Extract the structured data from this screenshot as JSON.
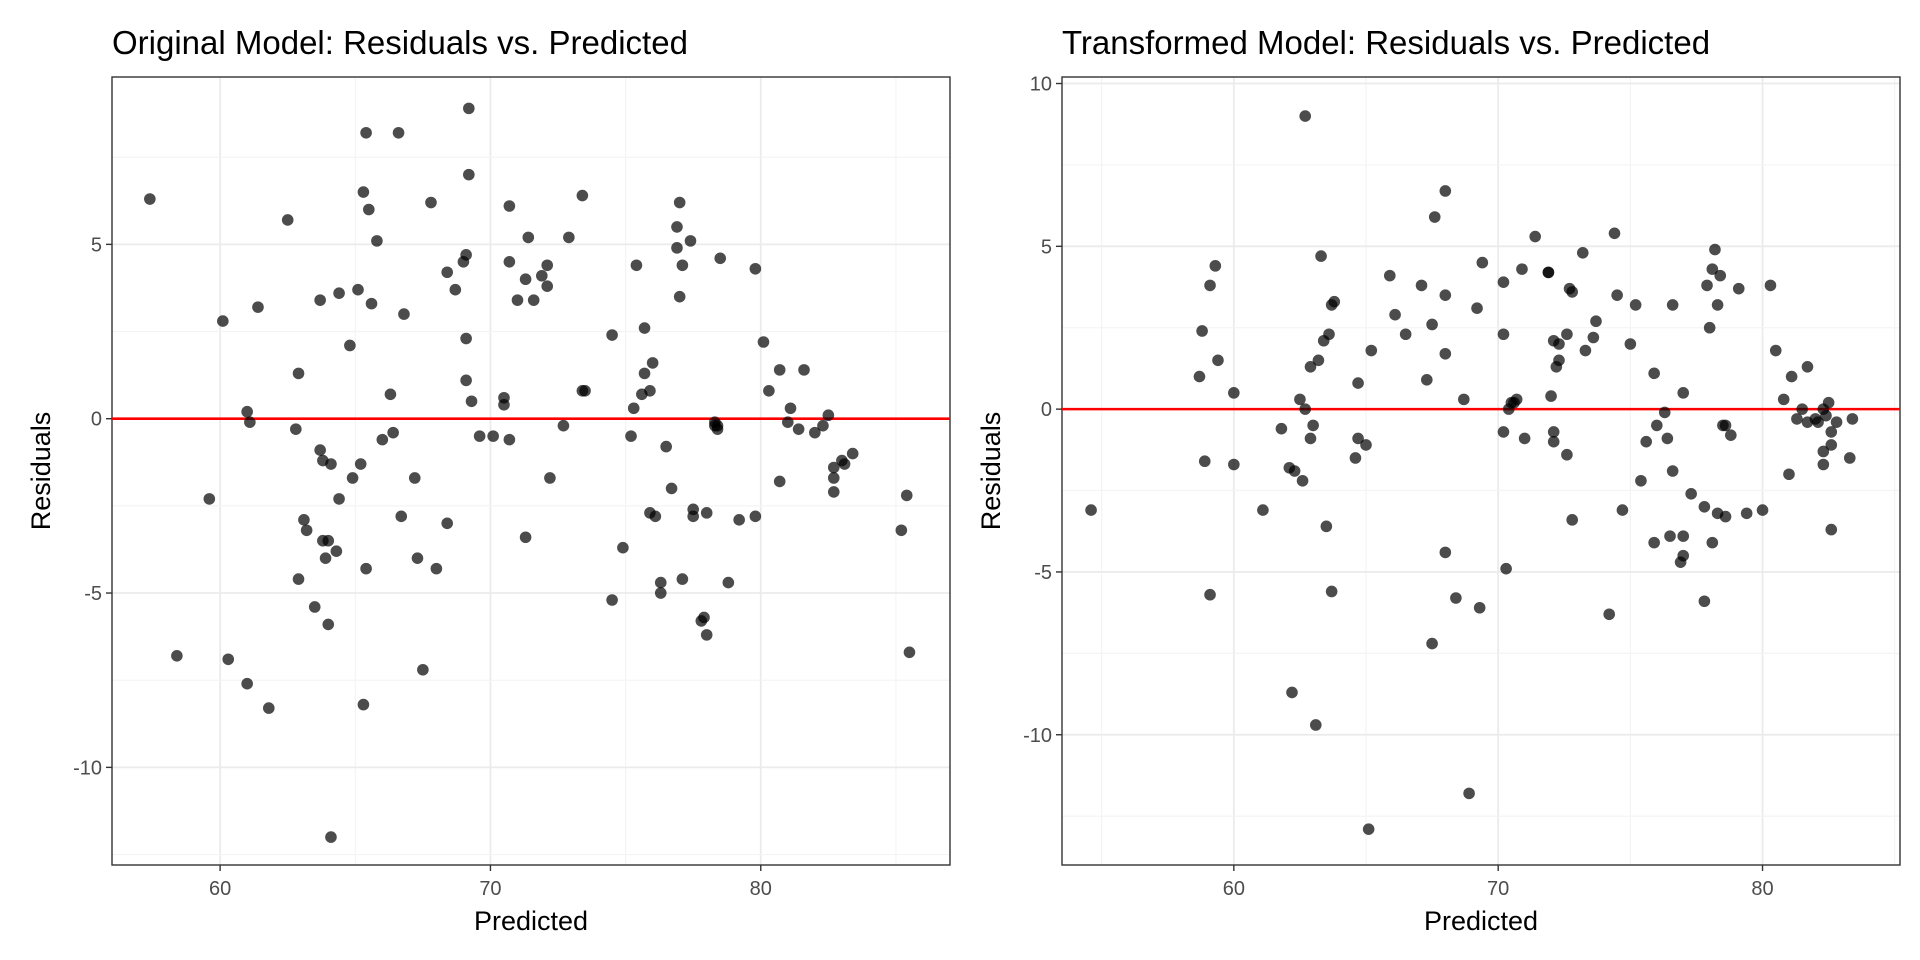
{
  "style": {
    "point_color": "#000000",
    "point_opacity": 0.7,
    "ref_line_color": "#ff0000",
    "grid_major_color": "#ebebeb",
    "grid_minor_color": "#f4f4f4",
    "panel_border_color": "#333333"
  },
  "chart_data": [
    {
      "type": "scatter",
      "title": "Original Model: Residuals vs. Predicted",
      "xlabel": "Predicted",
      "ylabel": "Residuals",
      "xlim": [
        56,
        87
      ],
      "ylim": [
        -12.8,
        9.8
      ],
      "xticks": [
        60,
        70,
        80
      ],
      "yticks": [
        -10,
        -5,
        0,
        5
      ],
      "tick_labels_x": [
        "60",
        "70",
        "80"
      ],
      "tick_labels_y": [
        "-10",
        "-5",
        "0",
        "5"
      ],
      "hline": 0,
      "grid": true,
      "points": [
        [
          57.4,
          6.3
        ],
        [
          58.4,
          -6.8
        ],
        [
          59.6,
          -2.3
        ],
        [
          60.1,
          2.8
        ],
        [
          60.3,
          -6.9
        ],
        [
          61.0,
          0.2
        ],
        [
          61.1,
          -0.1
        ],
        [
          61.0,
          -7.6
        ],
        [
          61.4,
          3.2
        ],
        [
          61.8,
          -8.3
        ],
        [
          62.5,
          5.7
        ],
        [
          62.8,
          -0.3
        ],
        [
          62.9,
          1.3
        ],
        [
          62.9,
          -4.6
        ],
        [
          63.1,
          -2.9
        ],
        [
          63.2,
          -3.2
        ],
        [
          63.5,
          -5.4
        ],
        [
          63.7,
          3.4
        ],
        [
          63.7,
          -0.9
        ],
        [
          63.8,
          -1.2
        ],
        [
          63.8,
          -3.5
        ],
        [
          63.9,
          -4.0
        ],
        [
          64.0,
          -3.5
        ],
        [
          64.1,
          -1.3
        ],
        [
          64.0,
          -5.9
        ],
        [
          64.1,
          -12.0
        ],
        [
          64.3,
          -3.8
        ],
        [
          64.4,
          3.6
        ],
        [
          64.4,
          -2.3
        ],
        [
          64.8,
          2.1
        ],
        [
          64.9,
          -1.7
        ],
        [
          65.1,
          3.7
        ],
        [
          65.2,
          -1.3
        ],
        [
          65.3,
          -8.2
        ],
        [
          65.3,
          6.5
        ],
        [
          65.4,
          8.2
        ],
        [
          65.4,
          -4.3
        ],
        [
          65.5,
          6.0
        ],
        [
          65.6,
          3.3
        ],
        [
          65.8,
          5.1
        ],
        [
          66.0,
          -0.6
        ],
        [
          66.3,
          0.7
        ],
        [
          66.4,
          -0.4
        ],
        [
          66.6,
          8.2
        ],
        [
          66.7,
          -2.8
        ],
        [
          66.8,
          3.0
        ],
        [
          67.2,
          -1.7
        ],
        [
          67.3,
          -4.0
        ],
        [
          67.5,
          -7.2
        ],
        [
          67.8,
          6.2
        ],
        [
          68.0,
          -4.3
        ],
        [
          68.4,
          -3.0
        ],
        [
          68.4,
          4.2
        ],
        [
          68.7,
          3.7
        ],
        [
          69.0,
          4.5
        ],
        [
          69.1,
          4.7
        ],
        [
          69.1,
          1.1
        ],
        [
          69.1,
          2.3
        ],
        [
          69.2,
          7.0
        ],
        [
          69.2,
          8.9
        ],
        [
          69.3,
          0.5
        ],
        [
          69.6,
          -0.5
        ],
        [
          70.1,
          -0.5
        ],
        [
          70.5,
          0.4
        ],
        [
          70.5,
          0.6
        ],
        [
          70.7,
          -0.6
        ],
        [
          70.7,
          6.1
        ],
        [
          70.7,
          4.5
        ],
        [
          71.0,
          3.4
        ],
        [
          71.3,
          -3.4
        ],
        [
          71.3,
          4.0
        ],
        [
          71.4,
          5.2
        ],
        [
          71.6,
          3.4
        ],
        [
          71.9,
          4.1
        ],
        [
          72.1,
          3.8
        ],
        [
          72.1,
          4.4
        ],
        [
          72.2,
          -1.7
        ],
        [
          72.7,
          -0.2
        ],
        [
          72.9,
          5.2
        ],
        [
          73.4,
          6.4
        ],
        [
          73.4,
          0.8
        ],
        [
          73.5,
          0.8
        ],
        [
          74.5,
          2.4
        ],
        [
          74.5,
          -5.2
        ],
        [
          74.9,
          -3.7
        ],
        [
          75.2,
          -0.5
        ],
        [
          75.3,
          0.3
        ],
        [
          75.4,
          4.4
        ],
        [
          75.6,
          0.7
        ],
        [
          75.7,
          2.6
        ],
        [
          75.7,
          1.3
        ],
        [
          75.9,
          -2.7
        ],
        [
          75.9,
          0.8
        ],
        [
          76.0,
          1.6
        ],
        [
          76.1,
          -2.8
        ],
        [
          76.3,
          -5.0
        ],
        [
          76.3,
          -4.7
        ],
        [
          76.5,
          -0.8
        ],
        [
          76.7,
          -2.0
        ],
        [
          76.9,
          4.9
        ],
        [
          76.9,
          5.5
        ],
        [
          77.0,
          6.2
        ],
        [
          77.0,
          3.5
        ],
        [
          77.1,
          4.4
        ],
        [
          77.1,
          -4.6
        ],
        [
          77.4,
          5.1
        ],
        [
          77.5,
          -2.8
        ],
        [
          77.5,
          -2.6
        ],
        [
          77.8,
          -5.8
        ],
        [
          77.9,
          -5.7
        ],
        [
          78.0,
          -6.2
        ],
        [
          78.0,
          -2.7
        ],
        [
          78.3,
          -0.2
        ],
        [
          78.3,
          -0.1
        ],
        [
          78.4,
          -0.3
        ],
        [
          78.4,
          -0.2
        ],
        [
          78.5,
          4.6
        ],
        [
          78.8,
          -4.7
        ],
        [
          79.2,
          -2.9
        ],
        [
          79.8,
          4.3
        ],
        [
          79.8,
          -2.8
        ],
        [
          80.1,
          2.2
        ],
        [
          80.3,
          0.8
        ],
        [
          80.7,
          1.4
        ],
        [
          80.7,
          -1.8
        ],
        [
          81.0,
          -0.1
        ],
        [
          81.1,
          0.3
        ],
        [
          81.4,
          -0.3
        ],
        [
          81.6,
          1.4
        ],
        [
          82.0,
          -0.4
        ],
        [
          82.3,
          -0.2
        ],
        [
          82.5,
          0.1
        ],
        [
          82.7,
          -1.4
        ],
        [
          82.7,
          -1.7
        ],
        [
          82.7,
          -2.1
        ],
        [
          83.0,
          -1.2
        ],
        [
          83.1,
          -1.3
        ],
        [
          83.4,
          -1.0
        ],
        [
          85.2,
          -3.2
        ],
        [
          85.4,
          -2.2
        ],
        [
          85.5,
          -6.7
        ]
      ]
    },
    {
      "type": "scatter",
      "title": "Transformed Model: Residuals vs. Predicted",
      "xlabel": "Predicted",
      "ylabel": "Residuals",
      "xlim": [
        53.5,
        85.2
      ],
      "ylim": [
        -14.0,
        10.2
      ],
      "xticks": [
        60,
        70,
        80
      ],
      "yticks": [
        -10,
        -5,
        0,
        5,
        10
      ],
      "tick_labels_x": [
        "60",
        "70",
        "80"
      ],
      "tick_labels_y": [
        "-10",
        "-5",
        "0",
        "5",
        "10"
      ],
      "hline": 0,
      "grid": true,
      "points": [
        [
          54.6,
          -3.1
        ],
        [
          58.7,
          1.0
        ],
        [
          58.8,
          2.4
        ],
        [
          58.9,
          -1.6
        ],
        [
          59.1,
          -5.7
        ],
        [
          59.1,
          3.8
        ],
        [
          59.3,
          4.4
        ],
        [
          59.4,
          1.5
        ],
        [
          60.0,
          0.5
        ],
        [
          60.0,
          -1.7
        ],
        [
          61.1,
          -3.1
        ],
        [
          61.8,
          -0.6
        ],
        [
          62.1,
          -1.8
        ],
        [
          62.2,
          -8.7
        ],
        [
          62.3,
          -1.9
        ],
        [
          62.5,
          0.3
        ],
        [
          62.6,
          -2.2
        ],
        [
          62.7,
          9.0
        ],
        [
          62.7,
          0.0
        ],
        [
          62.9,
          -0.9
        ],
        [
          62.9,
          1.3
        ],
        [
          63.0,
          -0.5
        ],
        [
          63.1,
          -9.7
        ],
        [
          63.2,
          1.5
        ],
        [
          63.3,
          4.7
        ],
        [
          63.4,
          2.1
        ],
        [
          63.5,
          -3.6
        ],
        [
          63.6,
          2.3
        ],
        [
          63.7,
          -5.6
        ],
        [
          63.7,
          3.2
        ],
        [
          63.8,
          3.3
        ],
        [
          64.6,
          -1.5
        ],
        [
          64.7,
          0.8
        ],
        [
          64.7,
          -0.9
        ],
        [
          65.0,
          -1.1
        ],
        [
          65.1,
          -12.9
        ],
        [
          65.2,
          1.8
        ],
        [
          65.9,
          4.1
        ],
        [
          66.1,
          2.9
        ],
        [
          66.5,
          2.3
        ],
        [
          67.1,
          3.8
        ],
        [
          67.3,
          0.9
        ],
        [
          67.5,
          2.6
        ],
        [
          67.5,
          -7.2
        ],
        [
          67.6,
          5.9
        ],
        [
          68.0,
          6.7
        ],
        [
          68.0,
          -4.4
        ],
        [
          68.0,
          1.7
        ],
        [
          68.0,
          3.5
        ],
        [
          68.4,
          -5.8
        ],
        [
          68.7,
          0.3
        ],
        [
          68.9,
          -11.8
        ],
        [
          69.2,
          3.1
        ],
        [
          69.3,
          -6.1
        ],
        [
          69.4,
          4.5
        ],
        [
          70.2,
          2.3
        ],
        [
          70.2,
          3.9
        ],
        [
          70.2,
          -0.7
        ],
        [
          70.3,
          -4.9
        ],
        [
          70.4,
          0.0
        ],
        [
          70.5,
          0.2
        ],
        [
          70.6,
          0.2
        ],
        [
          70.7,
          0.3
        ],
        [
          70.9,
          4.3
        ],
        [
          71.0,
          -0.9
        ],
        [
          71.4,
          5.3
        ],
        [
          71.9,
          4.2
        ],
        [
          71.9,
          4.2
        ],
        [
          72.1,
          -0.7
        ],
        [
          72.0,
          0.4
        ],
        [
          72.1,
          -1.0
        ],
        [
          72.1,
          2.1
        ],
        [
          72.2,
          1.3
        ],
        [
          72.3,
          1.5
        ],
        [
          72.3,
          2.0
        ],
        [
          72.6,
          2.3
        ],
        [
          72.6,
          -1.4
        ],
        [
          72.7,
          3.7
        ],
        [
          72.8,
          3.6
        ],
        [
          72.8,
          -3.4
        ],
        [
          73.2,
          4.8
        ],
        [
          73.3,
          1.8
        ],
        [
          73.6,
          2.2
        ],
        [
          73.7,
          2.7
        ],
        [
          74.2,
          -6.3
        ],
        [
          74.4,
          5.4
        ],
        [
          74.5,
          3.5
        ],
        [
          74.7,
          -3.1
        ],
        [
          75.0,
          2.0
        ],
        [
          75.2,
          3.2
        ],
        [
          75.4,
          -2.2
        ],
        [
          75.6,
          -1.0
        ],
        [
          75.9,
          -4.1
        ],
        [
          75.9,
          1.1
        ],
        [
          76.0,
          -0.5
        ],
        [
          76.3,
          -0.1
        ],
        [
          76.4,
          -0.9
        ],
        [
          76.5,
          -3.9
        ],
        [
          76.6,
          -1.9
        ],
        [
          76.6,
          3.2
        ],
        [
          76.9,
          -4.7
        ],
        [
          77.0,
          -4.5
        ],
        [
          77.0,
          -3.9
        ],
        [
          77.0,
          0.5
        ],
        [
          77.3,
          -2.6
        ],
        [
          77.8,
          -5.9
        ],
        [
          77.8,
          -3.0
        ],
        [
          77.9,
          3.8
        ],
        [
          78.0,
          2.5
        ],
        [
          78.1,
          -4.1
        ],
        [
          78.1,
          4.3
        ],
        [
          78.2,
          4.9
        ],
        [
          78.3,
          -3.2
        ],
        [
          78.3,
          3.2
        ],
        [
          78.4,
          4.1
        ],
        [
          78.5,
          -0.5
        ],
        [
          78.6,
          -0.5
        ],
        [
          78.6,
          -3.3
        ],
        [
          78.8,
          -0.8
        ],
        [
          79.1,
          3.7
        ],
        [
          79.4,
          -3.2
        ],
        [
          80.0,
          -3.1
        ],
        [
          80.3,
          3.8
        ],
        [
          80.5,
          1.8
        ],
        [
          80.8,
          0.3
        ],
        [
          81.0,
          -2.0
        ],
        [
          81.1,
          1.0
        ],
        [
          81.3,
          -0.3
        ],
        [
          81.5,
          0.0
        ],
        [
          81.7,
          -0.4
        ],
        [
          81.7,
          1.3
        ],
        [
          82.0,
          -0.3
        ],
        [
          82.1,
          -0.4
        ],
        [
          82.3,
          0.0
        ],
        [
          82.3,
          -1.3
        ],
        [
          82.3,
          -1.7
        ],
        [
          82.4,
          -0.2
        ],
        [
          82.5,
          0.2
        ],
        [
          82.6,
          -1.1
        ],
        [
          82.6,
          -3.7
        ],
        [
          82.6,
          -0.7
        ],
        [
          82.8,
          -0.4
        ],
        [
          83.3,
          -1.5
        ],
        [
          83.4,
          -0.3
        ]
      ]
    }
  ]
}
